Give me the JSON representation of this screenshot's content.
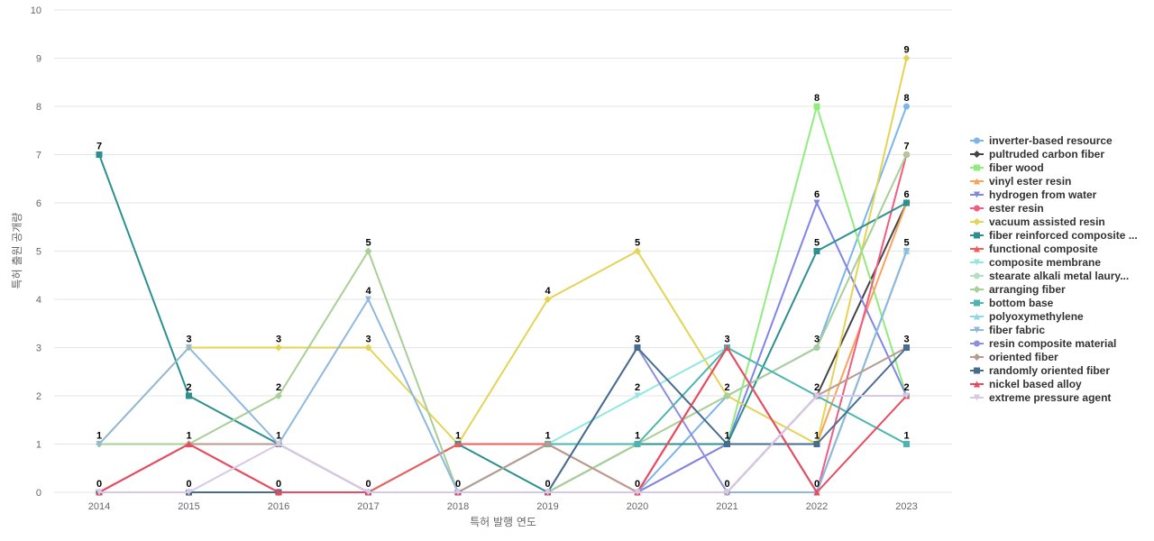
{
  "chart_data": {
    "type": "line",
    "xlabel": "특허 발행 연도",
    "ylabel": "특허 출원 공개량",
    "ylim": [
      0,
      10
    ],
    "yticks": [
      0,
      1,
      2,
      3,
      4,
      5,
      6,
      7,
      8,
      9,
      10
    ],
    "categories": [
      "2014",
      "2015",
      "2016",
      "2017",
      "2018",
      "2019",
      "2020",
      "2021",
      "2022",
      "2023"
    ],
    "grid": true,
    "legend_position": "right",
    "series": [
      {
        "name": "inverter-based resource",
        "color": "#7cb5ec",
        "marker": "circle",
        "values": [
          0,
          0,
          0,
          0,
          0,
          0,
          0,
          2,
          3,
          8
        ]
      },
      {
        "name": "pultruded carbon fiber",
        "color": "#434348",
        "marker": "diamond",
        "values": [
          0,
          0,
          0,
          0,
          0,
          0,
          0,
          0,
          2,
          6
        ]
      },
      {
        "name": "fiber wood",
        "color": "#90ed7d",
        "marker": "square",
        "values": [
          0,
          0,
          0,
          0,
          0,
          0,
          0,
          1,
          8,
          2
        ]
      },
      {
        "name": "vinyl ester resin",
        "color": "#f7a35c",
        "marker": "triangle",
        "values": [
          0,
          0,
          0,
          0,
          0,
          0,
          0,
          1,
          1,
          6
        ]
      },
      {
        "name": "hydrogen from water",
        "color": "#8085e9",
        "marker": "triangle-down",
        "values": [
          0,
          0,
          0,
          0,
          0,
          0,
          0,
          1,
          6,
          2
        ]
      },
      {
        "name": "ester resin",
        "color": "#f15c80",
        "marker": "circle",
        "values": [
          0,
          0,
          0,
          0,
          0,
          0,
          0,
          3,
          0,
          7
        ]
      },
      {
        "name": "vacuum assisted resin",
        "color": "#e4d354",
        "marker": "diamond",
        "values": [
          1,
          3,
          3,
          3,
          1,
          4,
          5,
          2,
          1,
          9
        ]
      },
      {
        "name": "fiber reinforced composite ...",
        "color": "#2b908f",
        "marker": "square",
        "values": [
          7,
          2,
          1,
          0,
          1,
          0,
          1,
          1,
          5,
          6
        ]
      },
      {
        "name": "functional composite",
        "color": "#f45b5b",
        "marker": "triangle",
        "values": [
          0,
          1,
          0,
          0,
          1,
          1,
          0,
          3,
          0,
          5
        ]
      },
      {
        "name": "composite membrane",
        "color": "#91e8e1",
        "marker": "triangle-down",
        "values": [
          0,
          0,
          0,
          0,
          0,
          1,
          2,
          3,
          0,
          5
        ]
      },
      {
        "name": "stearate alkali metal laury...",
        "color": "#b6dec4",
        "marker": "circle",
        "values": [
          0,
          0,
          0,
          0,
          0,
          0,
          0,
          0,
          0,
          5
        ]
      },
      {
        "name": "arranging fiber",
        "color": "#a8cf96",
        "marker": "diamond",
        "values": [
          1,
          1,
          2,
          5,
          0,
          0,
          1,
          2,
          3,
          7
        ]
      },
      {
        "name": "bottom base",
        "color": "#4cb5b0",
        "marker": "square",
        "values": [
          0,
          0,
          0,
          0,
          0,
          1,
          1,
          3,
          2,
          1
        ]
      },
      {
        "name": "polyoxymethylene",
        "color": "#8fd8e8",
        "marker": "triangle",
        "values": [
          0,
          0,
          0,
          0,
          0,
          0,
          0,
          0,
          0,
          5
        ]
      },
      {
        "name": "fiber fabric",
        "color": "#8fb8de",
        "marker": "triangle-down",
        "values": [
          1,
          3,
          1,
          4,
          0,
          0,
          0,
          0,
          0,
          5
        ]
      },
      {
        "name": "resin composite material",
        "color": "#8e8ee0",
        "marker": "circle",
        "values": [
          0,
          0,
          0,
          0,
          0,
          0,
          3,
          0,
          2,
          2
        ]
      },
      {
        "name": "oriented fiber",
        "color": "#b89a8e",
        "marker": "diamond",
        "values": [
          0,
          1,
          1,
          0,
          0,
          1,
          0,
          0,
          2,
          3
        ]
      },
      {
        "name": "randomly oriented fiber",
        "color": "#466d8e",
        "marker": "square",
        "values": [
          0,
          0,
          0,
          0,
          0,
          0,
          3,
          1,
          1,
          3
        ]
      },
      {
        "name": "nickel based alloy",
        "color": "#e84a5f",
        "marker": "triangle",
        "values": [
          0,
          1,
          0,
          0,
          0,
          0,
          0,
          3,
          0,
          2
        ]
      },
      {
        "name": "extreme pressure agent",
        "color": "#d8c8e8",
        "marker": "triangle-down",
        "values": [
          0,
          0,
          1,
          0,
          0,
          0,
          0,
          0,
          2,
          2
        ]
      }
    ],
    "data_labels": [
      {
        "x": "2014",
        "text": "7",
        "value": 7
      },
      {
        "x": "2014",
        "text": "1",
        "value": 1
      },
      {
        "x": "2014",
        "text": "0",
        "value": 0
      },
      {
        "x": "2015",
        "text": "3",
        "value": 3
      },
      {
        "x": "2015",
        "text": "2",
        "value": 2
      },
      {
        "x": "2015",
        "text": "1",
        "value": 1
      },
      {
        "x": "2015",
        "text": "0",
        "value": 0
      },
      {
        "x": "2016",
        "text": "3",
        "value": 3
      },
      {
        "x": "2016",
        "text": "2",
        "value": 2
      },
      {
        "x": "2016",
        "text": "1",
        "value": 1
      },
      {
        "x": "2016",
        "text": "0",
        "value": 0
      },
      {
        "x": "2017",
        "text": "5",
        "value": 5
      },
      {
        "x": "2017",
        "text": "4",
        "value": 4
      },
      {
        "x": "2017",
        "text": "3",
        "value": 3
      },
      {
        "x": "2017",
        "text": "0",
        "value": 0
      },
      {
        "x": "2018",
        "text": "1",
        "value": 1
      },
      {
        "x": "2018",
        "text": "0",
        "value": 0
      },
      {
        "x": "2019",
        "text": "4",
        "value": 4
      },
      {
        "x": "2019",
        "text": "1",
        "value": 1
      },
      {
        "x": "2019",
        "text": "0",
        "value": 0
      },
      {
        "x": "2020",
        "text": "5",
        "value": 5
      },
      {
        "x": "2020",
        "text": "3",
        "value": 3
      },
      {
        "x": "2020",
        "text": "2",
        "value": 2
      },
      {
        "x": "2020",
        "text": "1",
        "value": 1
      },
      {
        "x": "2020",
        "text": "0",
        "value": 0
      },
      {
        "x": "2021",
        "text": "3",
        "value": 3
      },
      {
        "x": "2021",
        "text": "2",
        "value": 2
      },
      {
        "x": "2021",
        "text": "1",
        "value": 1
      },
      {
        "x": "2021",
        "text": "0",
        "value": 0
      },
      {
        "x": "2022",
        "text": "8",
        "value": 8
      },
      {
        "x": "2022",
        "text": "6",
        "value": 6
      },
      {
        "x": "2022",
        "text": "5",
        "value": 5
      },
      {
        "x": "2022",
        "text": "3",
        "value": 3
      },
      {
        "x": "2022",
        "text": "2",
        "value": 2
      },
      {
        "x": "2022",
        "text": "1",
        "value": 1
      },
      {
        "x": "2022",
        "text": "0",
        "value": 0
      },
      {
        "x": "2023",
        "text": "9",
        "value": 9
      },
      {
        "x": "2023",
        "text": "8",
        "value": 8
      },
      {
        "x": "2023",
        "text": "7",
        "value": 7
      },
      {
        "x": "2023",
        "text": "6",
        "value": 6
      },
      {
        "x": "2023",
        "text": "5",
        "value": 5
      },
      {
        "x": "2023",
        "text": "3",
        "value": 3
      },
      {
        "x": "2023",
        "text": "2",
        "value": 2
      },
      {
        "x": "2023",
        "text": "1",
        "value": 1
      }
    ]
  }
}
